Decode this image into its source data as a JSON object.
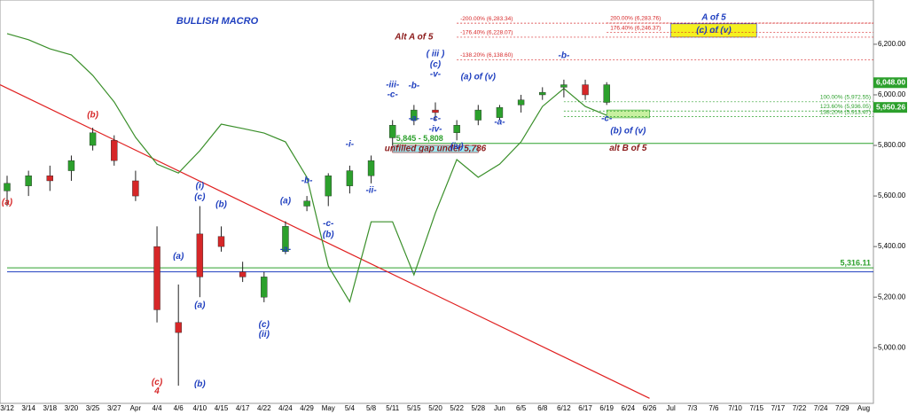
{
  "chart_data": {
    "type": "candlestick",
    "title": "BULLISH MACRO",
    "categories": [
      "3/12",
      "3/14",
      "3/18",
      "3/20",
      "3/25",
      "3/27",
      "Apr",
      "4/4",
      "4/6",
      "4/10",
      "4/15",
      "4/17",
      "4/22",
      "4/24",
      "4/29",
      "May",
      "5/4",
      "5/8",
      "5/11",
      "5/15",
      "5/20",
      "5/22",
      "5/28",
      "Jun",
      "6/5",
      "6/8",
      "6/12",
      "6/17",
      "6/19",
      "6/24",
      "6/26",
      "Jul",
      "7/3",
      "7/6",
      "7/10",
      "7/15",
      "7/17",
      "7/22",
      "7/24",
      "7/29",
      "Aug"
    ],
    "open": [
      5620,
      5640,
      5680,
      5700,
      5800,
      5820,
      5660,
      5400,
      5100,
      5450,
      5440,
      5300,
      5200,
      5380,
      5560,
      5600,
      5640,
      5680,
      5830,
      5900,
      5940,
      5850,
      5900,
      5910,
      5960,
      6000,
      6030,
      6040,
      5970,
      null,
      null,
      null,
      null,
      null,
      null,
      null,
      null,
      null,
      null,
      null,
      null
    ],
    "high": [
      5680,
      5700,
      5720,
      5760,
      5870,
      5840,
      5700,
      5480,
      5250,
      5560,
      5480,
      5340,
      5300,
      5500,
      5600,
      5690,
      5720,
      5760,
      5900,
      5960,
      5970,
      5900,
      5960,
      5960,
      6000,
      6030,
      6060,
      6060,
      6050,
      null,
      null,
      null,
      null,
      null,
      null,
      null,
      null,
      null,
      null,
      null,
      null
    ],
    "low": [
      5560,
      5600,
      5620,
      5660,
      5780,
      5720,
      5580,
      5100,
      4850,
      5200,
      5380,
      5260,
      5180,
      5370,
      5540,
      5560,
      5610,
      5650,
      5800,
      5880,
      5900,
      5820,
      5880,
      5900,
      5930,
      5980,
      5990,
      5980,
      5960,
      null,
      null,
      null,
      null,
      null,
      null,
      null,
      null,
      null,
      null,
      null,
      null
    ],
    "close": [
      5650,
      5680,
      5660,
      5740,
      5850,
      5740,
      5600,
      5150,
      5060,
      5280,
      5400,
      5280,
      5280,
      5480,
      5580,
      5680,
      5700,
      5740,
      5880,
      5940,
      5930,
      5880,
      5940,
      5950,
      5980,
      6010,
      6040,
      6000,
      6040,
      null,
      null,
      null,
      null,
      null,
      null,
      null,
      null,
      null,
      null,
      null,
      null
    ],
    "up_color": "#2ca02c",
    "down_color": "#d62728",
    "overlay": {
      "color": "#3a8f2a",
      "values": [
        6242,
        6218,
        6182,
        6158,
        6077,
        5972,
        5832,
        5726,
        5691,
        5779,
        5884,
        5867,
        5849,
        5814,
        5674,
        5323,
        5182,
        5498,
        5498,
        5288,
        5533,
        5744,
        5674,
        5726,
        5814,
        5954,
        6025,
        5954,
        5919,
        null,
        null,
        null,
        null,
        null,
        null,
        null,
        null,
        null,
        null,
        null,
        null
      ]
    },
    "ylim": [
      4780,
      6375
    ],
    "yticks": [
      {
        "value": 5000,
        "label": "5,000.00"
      },
      {
        "value": 5200,
        "label": "5,200.00"
      },
      {
        "value": 5400,
        "label": "5,400.00"
      },
      {
        "value": 5600,
        "label": "5,600.00"
      },
      {
        "value": 5800,
        "label": "5,800.00"
      },
      {
        "value": 6000,
        "label": "6,000.00"
      },
      {
        "value": 6200,
        "label": "6,200.00"
      }
    ],
    "trendline": {
      "color": "#e02020",
      "from": [
        "3/12",
        6040
      ],
      "to": [
        "6/26",
        4800
      ]
    },
    "levels": [
      {
        "value": 6283.34,
        "label": "-200.00% (6,283.34)",
        "from": "5/22",
        "color": "#d62728",
        "dash": true,
        "label_at": "start"
      },
      {
        "value": 6228.07,
        "label": "-176.40% (6,228.07)",
        "from": "5/22",
        "color": "#d62728",
        "dash": true,
        "label_at": "start"
      },
      {
        "value": 6138.6,
        "label": "-138.20% (6,138.60)",
        "from": "5/22",
        "color": "#d62728",
        "dash": true,
        "label_at": "start"
      },
      {
        "value": 6283.76,
        "label": "200.00% (6,283.76)",
        "from": "6/19",
        "color": "#d62728",
        "dash": true,
        "label_at": "start"
      },
      {
        "value": 6246.37,
        "label": "176.40% (6,246.37)",
        "from": "6/19",
        "color": "#d62728",
        "dash": true,
        "label_at": "start"
      },
      {
        "value": 5972.55,
        "label": "100.00% (5,972.55)",
        "from": "6/12",
        "color": "#2ca02c",
        "dash": true,
        "label_at": "end"
      },
      {
        "value": 5936.05,
        "label": "123.60% (5,936.05)",
        "from": "6/12",
        "color": "#2ca02c",
        "dash": true,
        "label_at": "end"
      },
      {
        "value": 5913.47,
        "label": "138.20% (5,913.47)",
        "from": "6/12",
        "color": "#2ca02c",
        "dash": true,
        "label_at": "end"
      },
      {
        "value": 5808,
        "label": "5,845 - 5,808",
        "from": "5/11",
        "color": "#2ca02c",
        "dash": false,
        "label_at": "start"
      },
      {
        "value": 5316.11,
        "label": "5,316.11",
        "from": "3/12",
        "color": "#2ca02c",
        "dash": false,
        "label_at": "end"
      },
      {
        "value": 5300,
        "label": null,
        "from": "3/12",
        "color": "#1f3fbf",
        "dash": false,
        "label_at": "end"
      }
    ],
    "price_tags": [
      {
        "value": 6048,
        "label": "6,048.00",
        "color": "#2ca02c"
      },
      {
        "value": 5950.26,
        "label": "5,950.26",
        "color": "#2ca02c"
      }
    ],
    "boxes": [
      {
        "label": "unfilled gap under 5,786",
        "from": "5/11",
        "to": "5/28",
        "top": 5800,
        "bottom": 5772,
        "fill": "#9fe8f0",
        "color": "#8b1a1a"
      },
      {
        "label": "(c) of (v)",
        "from": "Jul",
        "to": "7/15",
        "top": 6281,
        "bottom": 6228,
        "fill": "#f5f020",
        "color": "#1f3fbf"
      },
      {
        "label": null,
        "from": "6/19",
        "to": "6/26",
        "top": 5940,
        "bottom": 5909,
        "fill": "#c8f0a0",
        "color": "#2ca02c"
      }
    ],
    "annotations": [
      {
        "text": "(a)",
        "x": "3/12",
        "y": 5575,
        "color": "#d62728"
      },
      {
        "text": "(b)",
        "x": "3/25",
        "y": 5919,
        "color": "#d62728"
      },
      {
        "text": "(c)",
        "x": "4/4",
        "y": 4863,
        "color": "#d62728"
      },
      {
        "text": "4",
        "x": "4/4",
        "y": 4828,
        "color": "#d62728"
      },
      {
        "text": "(a)",
        "x": "4/6",
        "y": 5361,
        "color": "#1f3fbf"
      },
      {
        "text": "(b)",
        "x": "4/10",
        "y": 4856,
        "color": "#1f3fbf"
      },
      {
        "text": "(i)",
        "x": "4/10",
        "y": 5639,
        "color": "#1f3fbf"
      },
      {
        "text": "(c)",
        "x": "4/10",
        "y": 5596,
        "color": "#1f3fbf"
      },
      {
        "text": "(a)",
        "x": "4/10",
        "y": 5168,
        "color": "#1f3fbf"
      },
      {
        "text": "(b)",
        "x": "4/15",
        "y": 5565,
        "color": "#1f3fbf"
      },
      {
        "text": "(c)",
        "x": "4/22",
        "y": 5091,
        "color": "#1f3fbf"
      },
      {
        "text": "(ii)",
        "x": "4/22",
        "y": 5053,
        "color": "#1f3fbf"
      },
      {
        "text": "(a)",
        "x": "4/24",
        "y": 5579,
        "color": "#1f3fbf"
      },
      {
        "text": "-a-",
        "x": "4/24",
        "y": 5389,
        "color": "#1f3fbf"
      },
      {
        "text": "-b-",
        "x": "4/29",
        "y": 5660,
        "color": "#1f3fbf"
      },
      {
        "text": "-c-",
        "x": "May",
        "y": 5491,
        "color": "#1f3fbf"
      },
      {
        "text": "(b)",
        "x": "May",
        "y": 5446,
        "color": "#1f3fbf"
      },
      {
        "text": "-i-",
        "x": "5/4",
        "y": 5804,
        "color": "#1f3fbf"
      },
      {
        "text": "-ii-",
        "x": "5/8",
        "y": 5621,
        "color": "#1f3fbf"
      },
      {
        "text": "-iii-",
        "x": "5/11",
        "y": 6039,
        "color": "#1f3fbf"
      },
      {
        "text": "-c-",
        "x": "5/11",
        "y": 6000,
        "color": "#1f3fbf"
      },
      {
        "text": "-a-",
        "x": "5/15",
        "y": 5905,
        "color": "#1f3fbf"
      },
      {
        "text": "-b-",
        "x": "5/15",
        "y": 6035,
        "color": "#1f3fbf"
      },
      {
        "text": "-c-",
        "x": "5/20",
        "y": 5905,
        "color": "#1f3fbf"
      },
      {
        "text": "-iv-",
        "x": "5/20",
        "y": 5863,
        "color": "#1f3fbf"
      },
      {
        "text": "( iii )",
        "x": "5/20",
        "y": 6161,
        "color": "#1f3fbf"
      },
      {
        "text": "(c)",
        "x": "5/20",
        "y": 6119,
        "color": "#1f3fbf"
      },
      {
        "text": "-v-",
        "x": "5/20",
        "y": 6081,
        "color": "#1f3fbf"
      },
      {
        "text": "(iv)",
        "x": "5/22",
        "y": 5796,
        "color": "#1f3fbf"
      },
      {
        "text": "(a) of (v)",
        "x": "5/28",
        "y": 6070,
        "color": "#1f3fbf"
      },
      {
        "text": "-a-",
        "x": "Jun",
        "y": 5891,
        "color": "#1f3fbf"
      },
      {
        "text": "-b-",
        "x": "6/12",
        "y": 6154,
        "color": "#1f3fbf"
      },
      {
        "text": "-c-",
        "x": "6/19",
        "y": 5905,
        "color": "#1f3fbf"
      },
      {
        "text": "(b) of (v)",
        "x": "6/24",
        "y": 5856,
        "color": "#1f3fbf"
      },
      {
        "text": "alt  B of 5",
        "x": "6/24",
        "y": 5789,
        "color": "#8b1a1a"
      },
      {
        "text": "Alt A of 5",
        "x": "5/15",
        "y": 6228,
        "color": "#8b1a1a"
      },
      {
        "text": "A of 5",
        "x": "7/6",
        "y": 6305,
        "color": "#1f3fbf"
      }
    ]
  }
}
